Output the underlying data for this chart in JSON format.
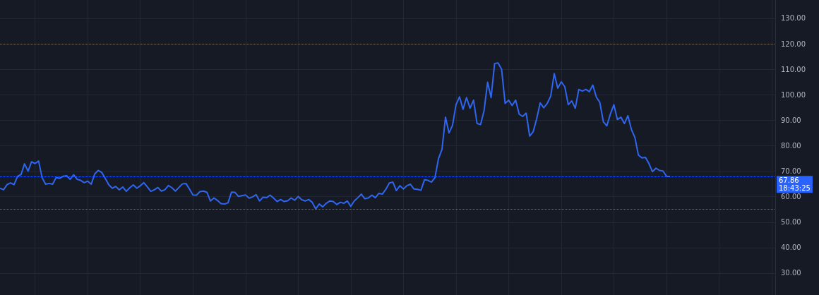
{
  "chart_data": {
    "type": "line",
    "categories": [
      null,
      null,
      null,
      null,
      null,
      null,
      null,
      null,
      null,
      null,
      null,
      null,
      null,
      null,
      null,
      null,
      null,
      null,
      null,
      null,
      null,
      null,
      null,
      null,
      null,
      null,
      null,
      null,
      null,
      null,
      null,
      null,
      null,
      null,
      null,
      null,
      null,
      null,
      null,
      null,
      null,
      null,
      null,
      null,
      null,
      null,
      null,
      null,
      null,
      null,
      null,
      null,
      null,
      null,
      null,
      null,
      null,
      null,
      null,
      null,
      null,
      null,
      null,
      null,
      null,
      null,
      null,
      null,
      null,
      null,
      null,
      null,
      null,
      null,
      null,
      null,
      null,
      null,
      null,
      null,
      null,
      null,
      null,
      null,
      null,
      null,
      null,
      null,
      null,
      null,
      null,
      null,
      null,
      null,
      null,
      null,
      null,
      null,
      null,
      null,
      null,
      null,
      null,
      null,
      null,
      null,
      null,
      null,
      null,
      null,
      null,
      null,
      null,
      null,
      null,
      null,
      null,
      null,
      null,
      null,
      null,
      null,
      null,
      null,
      null,
      null,
      null,
      null,
      null,
      null,
      null,
      null,
      null,
      null,
      null,
      null,
      null,
      null,
      null,
      null,
      null,
      null,
      null,
      null,
      null,
      null,
      null,
      null,
      null,
      null,
      null,
      null,
      null,
      null,
      null,
      null,
      null,
      null,
      null,
      null,
      null,
      null,
      null,
      null,
      null,
      null,
      null,
      null,
      null,
      null,
      null,
      null,
      null,
      null,
      null,
      null,
      null,
      null,
      null,
      null,
      null,
      null,
      null,
      null,
      null,
      null,
      null,
      null,
      null,
      null,
      null,
      null,
      null,
      null,
      null,
      null,
      null,
      null,
      null,
      null,
      null,
      null,
      null,
      null,
      null,
      null,
      null,
      null,
      null,
      null,
      null,
      null,
      null,
      null,
      null,
      null,
      null,
      null,
      null,
      null,
      null,
      null
    ],
    "series": [
      {
        "color": "#2f66f0",
        "values": [
          63.3,
          62.7,
          64.7,
          65.4,
          64.7,
          68.0,
          68.7,
          72.9,
          70.0,
          73.7,
          73.0,
          74.0,
          67.5,
          64.9,
          65.2,
          64.9,
          67.5,
          67.2,
          68.0,
          68.2,
          66.8,
          68.6,
          66.8,
          66.4,
          65.5,
          66.1,
          64.9,
          68.9,
          70.3,
          69.5,
          67.2,
          64.7,
          63.3,
          64.0,
          62.7,
          63.8,
          62.1,
          63.5,
          64.6,
          63.3,
          64.3,
          65.5,
          63.8,
          62.1,
          62.7,
          63.6,
          62.2,
          62.7,
          64.4,
          63.5,
          62.2,
          63.6,
          65.0,
          65.2,
          63.0,
          60.7,
          60.6,
          62.0,
          62.2,
          61.7,
          58.3,
          59.5,
          58.5,
          57.3,
          57.1,
          57.6,
          61.8,
          61.7,
          60.1,
          60.4,
          60.7,
          59.4,
          59.9,
          60.8,
          58.3,
          59.8,
          59.6,
          60.6,
          59.4,
          58.1,
          58.9,
          58.1,
          58.4,
          59.5,
          58.6,
          60.1,
          58.8,
          58.3,
          58.9,
          57.8,
          55.2,
          57.1,
          56.0,
          57.4,
          58.3,
          58.1,
          56.9,
          57.8,
          57.4,
          58.3,
          56.2,
          58.3,
          59.6,
          61.0,
          59.2,
          59.5,
          60.6,
          59.6,
          61.3,
          61.0,
          62.9,
          65.4,
          65.7,
          62.4,
          64.3,
          63.0,
          64.3,
          64.9,
          63.0,
          62.9,
          62.5,
          66.6,
          66.4,
          65.7,
          67.5,
          74.9,
          78.6,
          91.2,
          85.0,
          88.0,
          96.1,
          99.2,
          94.3,
          98.9,
          94.7,
          97.9,
          88.7,
          88.3,
          93.8,
          104.9,
          98.9,
          112.3,
          112.5,
          110.0,
          96.6,
          97.9,
          95.8,
          97.9,
          92.4,
          91.5,
          92.8,
          83.8,
          85.5,
          90.6,
          96.8,
          94.9,
          96.6,
          99.5,
          108.3,
          102.6,
          105.1,
          103.2,
          96.1,
          97.6,
          94.7,
          102.1,
          101.4,
          102.1,
          101.2,
          103.8,
          99.1,
          97.0,
          89.4,
          87.8,
          92.4,
          96.1,
          90.3,
          91.2,
          88.7,
          91.8,
          86.4,
          83.2,
          76.3,
          75.2,
          75.4,
          73.0,
          69.8,
          71.2,
          70.3,
          70.1,
          68.0,
          67.86,
          null,
          null,
          null,
          null,
          null,
          null,
          null,
          null,
          null,
          null,
          null,
          null,
          null,
          null,
          null,
          null,
          null,
          null,
          null,
          null,
          null,
          null,
          null,
          null,
          null,
          null,
          null,
          null,
          null,
          null
        ]
      }
    ],
    "ylim": [
      21.4,
      137.2
    ],
    "yticks": [
      {
        "value": 30,
        "label": "30.00"
      },
      {
        "value": 40,
        "label": "40.00"
      },
      {
        "value": 50,
        "label": "50.00"
      },
      {
        "value": 60,
        "label": "60.00"
      },
      {
        "value": 70,
        "label": "70.00"
      },
      {
        "value": 80,
        "label": "80.00"
      },
      {
        "value": 90,
        "label": "90.00"
      },
      {
        "value": 100,
        "label": "100.00"
      },
      {
        "value": 110,
        "label": "110.00"
      },
      {
        "value": 120,
        "label": "120.00"
      },
      {
        "value": 130,
        "label": "130.00"
      }
    ],
    "tick_labels": "y",
    "grid": true,
    "line_style": "solid",
    "ref_lines": [
      {
        "axis": "y",
        "value": 120,
        "color": "#7c7469",
        "line_style": "dotted"
      },
      {
        "axis": "y",
        "value": 55,
        "color": "#6b6f7a",
        "line_style": "dotted"
      },
      {
        "axis": "y",
        "value": 67.86,
        "label": "67.86",
        "color": "#2962ff",
        "line_style": "dotted"
      }
    ],
    "annotations": [
      "18:43:25"
    ]
  }
}
